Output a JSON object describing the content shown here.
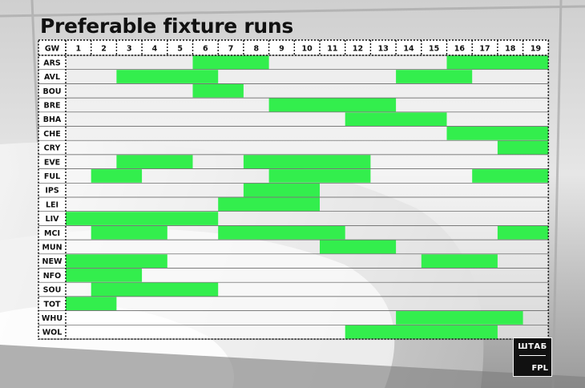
{
  "title": "Preferable fixture runs",
  "logo": {
    "line1": "ШТАБ",
    "line2": "FPL"
  },
  "colors": {
    "highlight": "#33ee4d",
    "text": "#111111",
    "cell_bg": "#ffffff"
  },
  "chart_data": {
    "type": "table",
    "corner_label": "GW",
    "gameweeks": [
      "1",
      "2",
      "3",
      "4",
      "5",
      "6",
      "7",
      "8",
      "9",
      "10",
      "11",
      "12",
      "13",
      "14",
      "15",
      "16",
      "17",
      "18",
      "19"
    ],
    "teams": [
      {
        "team": "ARS",
        "runs": [
          [
            6,
            8
          ],
          [
            16,
            19
          ]
        ]
      },
      {
        "team": "AVL",
        "runs": [
          [
            3,
            6
          ],
          [
            14,
            16
          ]
        ]
      },
      {
        "team": "BOU",
        "runs": [
          [
            6,
            7
          ]
        ]
      },
      {
        "team": "BRE",
        "runs": [
          [
            9,
            13
          ]
        ]
      },
      {
        "team": "BHA",
        "runs": [
          [
            12,
            15
          ]
        ]
      },
      {
        "team": "CHE",
        "runs": [
          [
            16,
            19
          ]
        ]
      },
      {
        "team": "CRY",
        "runs": [
          [
            18,
            19
          ]
        ]
      },
      {
        "team": "EVE",
        "runs": [
          [
            3,
            5
          ],
          [
            8,
            12
          ]
        ]
      },
      {
        "team": "FUL",
        "runs": [
          [
            2,
            3
          ],
          [
            9,
            12
          ],
          [
            17,
            19
          ]
        ]
      },
      {
        "team": "IPS",
        "runs": [
          [
            8,
            10
          ]
        ]
      },
      {
        "team": "LEI",
        "runs": [
          [
            7,
            10
          ]
        ]
      },
      {
        "team": "LIV",
        "runs": [
          [
            1,
            6
          ]
        ]
      },
      {
        "team": "MCI",
        "runs": [
          [
            2,
            4
          ],
          [
            7,
            11
          ],
          [
            18,
            19
          ]
        ]
      },
      {
        "team": "MUN",
        "runs": [
          [
            11,
            13
          ]
        ]
      },
      {
        "team": "NEW",
        "runs": [
          [
            1,
            4
          ],
          [
            15,
            17
          ]
        ]
      },
      {
        "team": "NFO",
        "runs": [
          [
            1,
            3
          ]
        ]
      },
      {
        "team": "SOU",
        "runs": [
          [
            2,
            6
          ]
        ]
      },
      {
        "team": "TOT",
        "runs": [
          [
            1,
            2
          ]
        ]
      },
      {
        "team": "WHU",
        "runs": [
          [
            14,
            18
          ]
        ]
      },
      {
        "team": "WOL",
        "runs": [
          [
            12,
            17
          ]
        ]
      }
    ]
  }
}
